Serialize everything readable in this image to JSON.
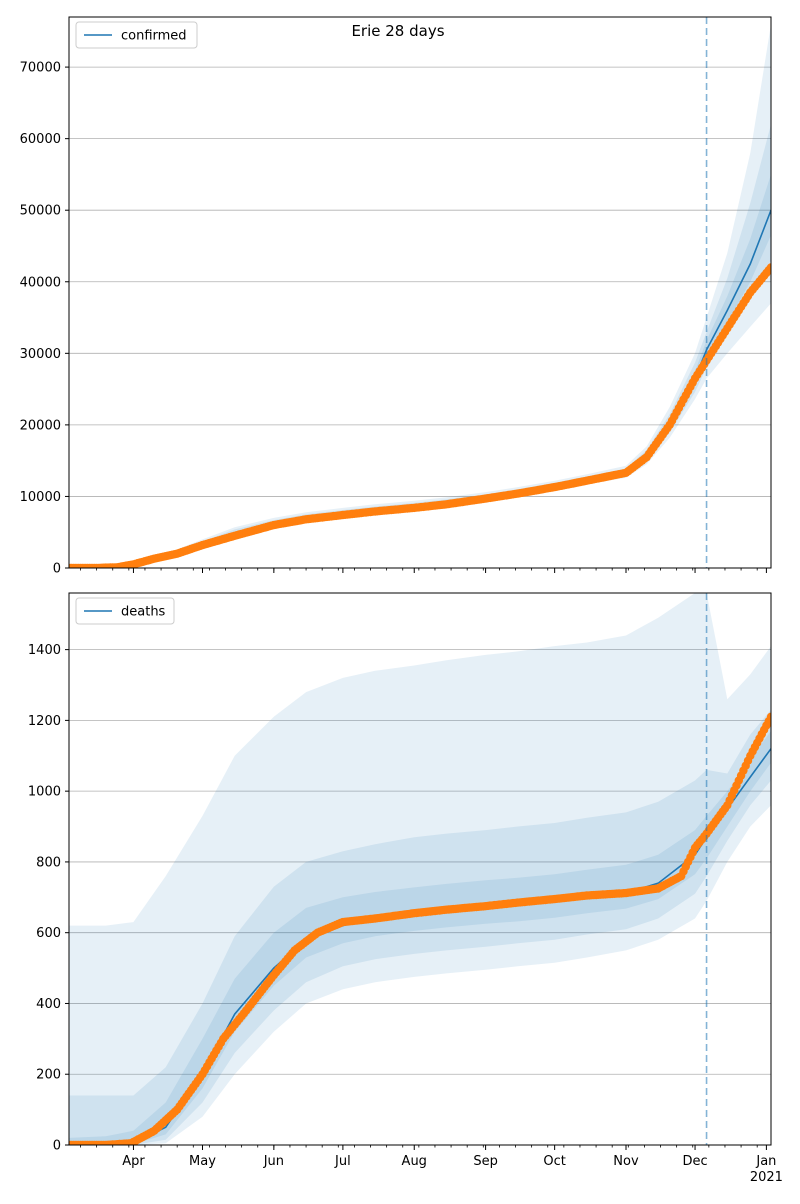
{
  "title": "Erie 28 days",
  "colors": {
    "fit": "#1f77b4",
    "observed": "#ff7f0e",
    "band": "#1f77b4",
    "grid": "#b0b0b0",
    "vline": "#1f77b4"
  },
  "chart_data": [
    {
      "type": "line",
      "panel": "top",
      "legend": "confirmed",
      "legend_position": "top-left",
      "grid": "y",
      "xlim": [
        "2020-03-04",
        "2021-01-03"
      ],
      "ylim": [
        0,
        77000
      ],
      "yticks": [
        0,
        10000,
        20000,
        30000,
        40000,
        50000,
        60000,
        70000
      ],
      "xticks": [
        {
          "date": "2020-04-01",
          "label": "Apr"
        },
        {
          "date": "2020-05-01",
          "label": "May"
        },
        {
          "date": "2020-06-01",
          "label": "Jun"
        },
        {
          "date": "2020-07-01",
          "label": "Jul"
        },
        {
          "date": "2020-08-01",
          "label": "Aug"
        },
        {
          "date": "2020-09-01",
          "label": "Sep"
        },
        {
          "date": "2020-10-01",
          "label": "Oct"
        },
        {
          "date": "2020-11-01",
          "label": "Nov"
        },
        {
          "date": "2020-12-01",
          "label": "Dec"
        },
        {
          "date": "2021-01-01",
          "label": "Jan",
          "label2": "2021"
        }
      ],
      "vline": "2020-12-06",
      "fit": {
        "name": "confirmed",
        "x": [
          "2020-03-04",
          "2020-03-20",
          "2020-04-01",
          "2020-04-15",
          "2020-05-01",
          "2020-05-15",
          "2020-06-01",
          "2020-06-15",
          "2020-07-01",
          "2020-07-15",
          "2020-08-01",
          "2020-08-15",
          "2020-09-01",
          "2020-09-15",
          "2020-10-01",
          "2020-10-15",
          "2020-11-01",
          "2020-11-10",
          "2020-11-20",
          "2020-12-01",
          "2020-12-06",
          "2020-12-15",
          "2020-12-25",
          "2021-01-03"
        ],
        "y": [
          0,
          100,
          500,
          1500,
          3200,
          4800,
          6100,
          7000,
          7600,
          8100,
          8600,
          9100,
          9800,
          10500,
          11400,
          12300,
          13300,
          15500,
          20000,
          26500,
          30500,
          36000,
          42500,
          50000
        ]
      },
      "bands": [
        {
          "lo": [
            0,
            80,
            350,
            1100,
            2600,
            4100,
            5500,
            6400,
            7100,
            7600,
            8100,
            8600,
            9300,
            10000,
            10900,
            11700,
            12600,
            14500,
            18200,
            23600,
            26500,
            30000,
            33700,
            37000
          ],
          "hi": [
            0,
            130,
            700,
            2000,
            4000,
            5700,
            7000,
            7800,
            8400,
            8900,
            9400,
            9900,
            10600,
            11300,
            12200,
            13100,
            14300,
            17000,
            22500,
            30000,
            35000,
            44000,
            58000,
            76000
          ]
        },
        {
          "lo": [
            0,
            85,
            400,
            1250,
            2800,
            4350,
            5700,
            6600,
            7250,
            7750,
            8250,
            8750,
            9450,
            10150,
            11050,
            11900,
            12850,
            14900,
            18900,
            24600,
            28000,
            32500,
            37500,
            43000
          ],
          "hi": [
            0,
            120,
            620,
            1800,
            3700,
            5400,
            6700,
            7500,
            8100,
            8600,
            9100,
            9600,
            10300,
            11000,
            11900,
            12800,
            13900,
            16500,
            21500,
            28700,
            33000,
            40500,
            51000,
            62000
          ]
        },
        {
          "lo": [
            0,
            92,
            450,
            1380,
            3000,
            4600,
            5900,
            6800,
            7420,
            7920,
            8420,
            8920,
            9620,
            10320,
            11220,
            12100,
            13070,
            15200,
            19500,
            25600,
            29300,
            34300,
            40000,
            46500
          ],
          "hi": [
            0,
            110,
            560,
            1650,
            3450,
            5050,
            6350,
            7250,
            7800,
            8300,
            8800,
            9300,
            10000,
            10700,
            11600,
            12500,
            13550,
            15900,
            20600,
            27500,
            31800,
            38000,
            46000,
            55000
          ]
        }
      ],
      "observed": {
        "name": "observed",
        "x": [
          "2020-03-04",
          "2020-03-15",
          "2020-03-25",
          "2020-04-01",
          "2020-04-10",
          "2020-04-20",
          "2020-05-01",
          "2020-05-15",
          "2020-06-01",
          "2020-06-15",
          "2020-07-01",
          "2020-07-15",
          "2020-08-01",
          "2020-08-15",
          "2020-09-01",
          "2020-09-15",
          "2020-10-01",
          "2020-10-15",
          "2020-11-01",
          "2020-11-10",
          "2020-11-20",
          "2020-12-01",
          "2020-12-06",
          "2020-12-15",
          "2020-12-25",
          "2021-01-03"
        ],
        "y": [
          0,
          0,
          100,
          500,
          1300,
          2000,
          3200,
          4500,
          6000,
          6800,
          7400,
          7900,
          8400,
          8900,
          9700,
          10400,
          11300,
          12200,
          13300,
          15500,
          20000,
          26500,
          29000,
          33500,
          38500,
          42000
        ]
      }
    },
    {
      "type": "line",
      "panel": "bottom",
      "legend": "deaths",
      "legend_position": "top-left",
      "grid": "y",
      "xlim": [
        "2020-03-04",
        "2021-01-03"
      ],
      "ylim": [
        0,
        1560
      ],
      "yticks": [
        0,
        200,
        400,
        600,
        800,
        1000,
        1200,
        1400
      ],
      "xticks": [
        {
          "date": "2020-04-01",
          "label": "Apr"
        },
        {
          "date": "2020-05-01",
          "label": "May"
        },
        {
          "date": "2020-06-01",
          "label": "Jun"
        },
        {
          "date": "2020-07-01",
          "label": "Jul"
        },
        {
          "date": "2020-08-01",
          "label": "Aug"
        },
        {
          "date": "2020-09-01",
          "label": "Sep"
        },
        {
          "date": "2020-10-01",
          "label": "Oct"
        },
        {
          "date": "2020-11-01",
          "label": "Nov"
        },
        {
          "date": "2020-12-01",
          "label": "Dec"
        },
        {
          "date": "2021-01-01",
          "label": "Jan",
          "label2": "2021"
        }
      ],
      "vline": "2020-12-06",
      "fit": {
        "name": "deaths",
        "x": [
          "2020-03-04",
          "2020-03-20",
          "2020-04-01",
          "2020-04-15",
          "2020-05-01",
          "2020-05-15",
          "2020-06-01",
          "2020-06-15",
          "2020-07-01",
          "2020-07-15",
          "2020-08-01",
          "2020-08-15",
          "2020-09-01",
          "2020-09-15",
          "2020-10-01",
          "2020-10-15",
          "2020-11-01",
          "2020-11-15",
          "2020-12-01",
          "2020-12-06",
          "2020-12-15",
          "2020-12-25",
          "2021-01-03"
        ],
        "y": [
          0,
          0,
          5,
          50,
          200,
          370,
          500,
          580,
          620,
          640,
          655,
          665,
          675,
          680,
          690,
          700,
          712,
          740,
          820,
          870,
          950,
          1040,
          1120
        ]
      },
      "bands": [
        {
          "lo": [
            0,
            0,
            0,
            5,
            80,
            200,
            320,
            400,
            440,
            460,
            475,
            485,
            495,
            505,
            515,
            530,
            550,
            580,
            640,
            690,
            800,
            900,
            960
          ],
          "hi": [
            620,
            620,
            630,
            760,
            930,
            1100,
            1210,
            1280,
            1320,
            1340,
            1355,
            1370,
            1385,
            1395,
            1410,
            1420,
            1440,
            1490,
            1560,
            1560,
            1260,
            1330,
            1410
          ]
        },
        {
          "lo": [
            0,
            0,
            0,
            15,
            120,
            260,
            380,
            460,
            505,
            525,
            540,
            550,
            560,
            570,
            580,
            595,
            610,
            640,
            710,
            760,
            860,
            960,
            1030
          ],
          "hi": [
            140,
            140,
            140,
            220,
            400,
            590,
            730,
            800,
            830,
            850,
            870,
            880,
            890,
            900,
            910,
            925,
            940,
            970,
            1030,
            1060,
            1050,
            1160,
            1230
          ]
        },
        {
          "lo": [
            0,
            0,
            2,
            30,
            160,
            320,
            450,
            530,
            570,
            590,
            605,
            615,
            625,
            632,
            642,
            655,
            668,
            695,
            765,
            810,
            900,
            1000,
            1080
          ],
          "hi": [
            20,
            25,
            40,
            120,
            300,
            470,
            600,
            670,
            700,
            715,
            728,
            738,
            748,
            755,
            765,
            778,
            792,
            820,
            890,
            930,
            1000,
            1090,
            1170
          ]
        }
      ],
      "observed": {
        "name": "observed",
        "x": [
          "2020-03-04",
          "2020-03-20",
          "2020-03-31",
          "2020-04-10",
          "2020-04-20",
          "2020-05-01",
          "2020-05-10",
          "2020-05-20",
          "2020-06-01",
          "2020-06-10",
          "2020-06-20",
          "2020-07-01",
          "2020-07-15",
          "2020-08-01",
          "2020-08-15",
          "2020-09-01",
          "2020-09-15",
          "2020-10-01",
          "2020-10-15",
          "2020-11-01",
          "2020-11-15",
          "2020-11-25",
          "2020-12-01",
          "2020-12-06",
          "2020-12-15",
          "2020-12-25",
          "2021-01-03"
        ],
        "y": [
          0,
          0,
          5,
          40,
          100,
          200,
          300,
          380,
          480,
          550,
          600,
          630,
          640,
          655,
          665,
          675,
          685,
          695,
          705,
          712,
          725,
          760,
          840,
          880,
          960,
          1100,
          1210
        ]
      }
    }
  ]
}
